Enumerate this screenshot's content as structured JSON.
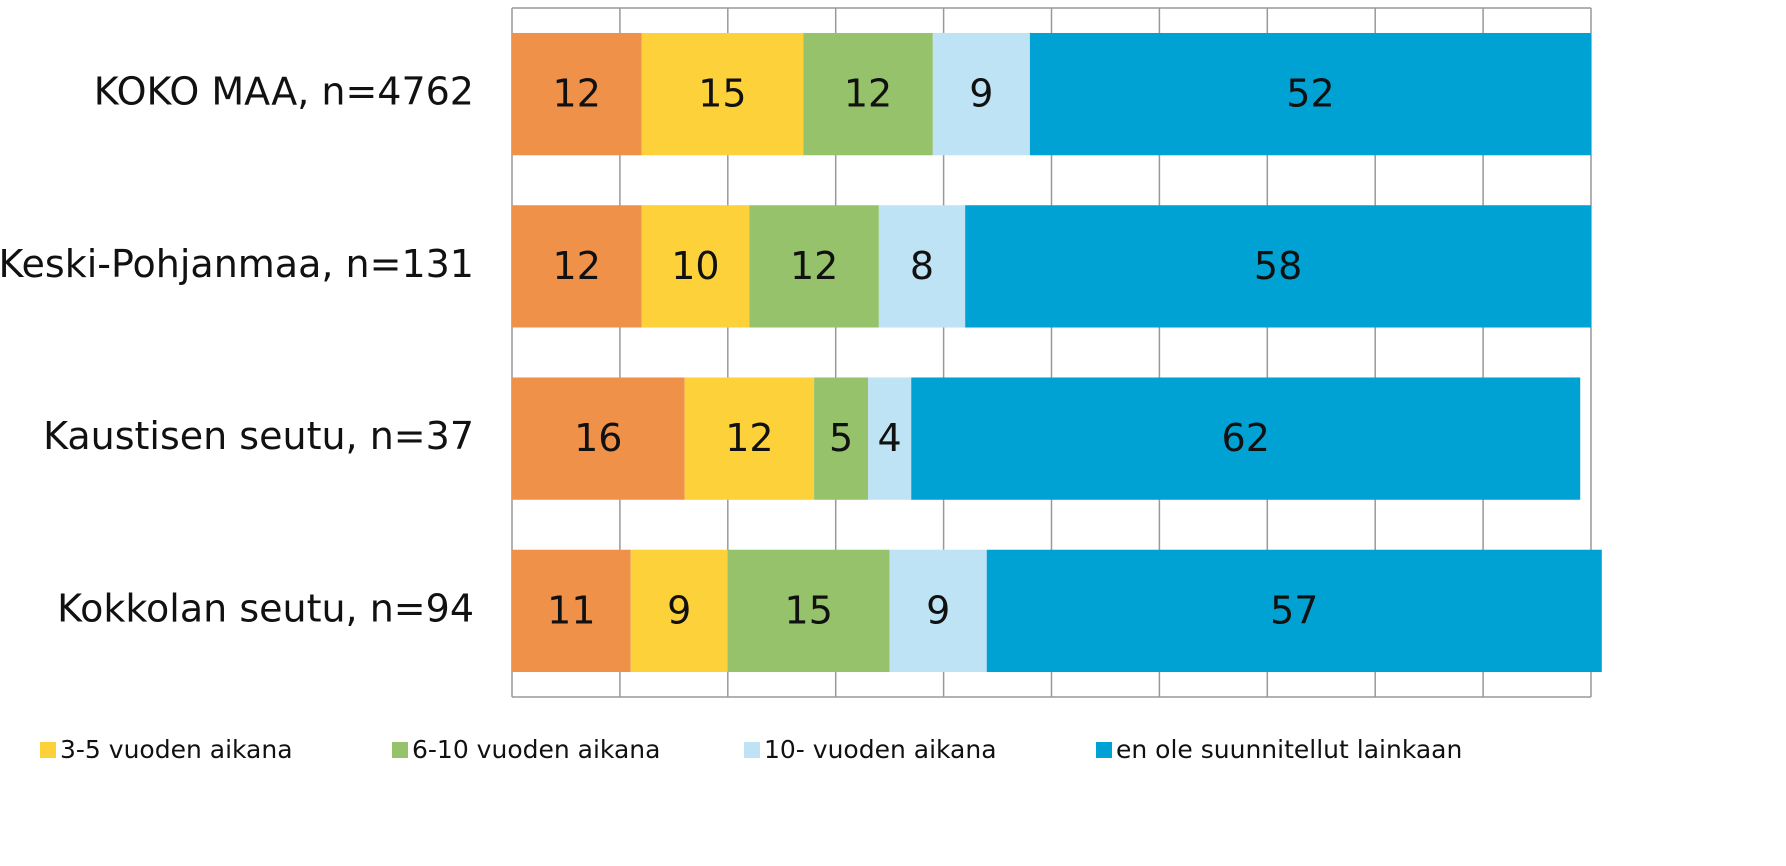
{
  "chart_data": {
    "type": "bar",
    "orientation": "horizontal",
    "stacked": true,
    "categories": [
      "KOKO MAA, n=4762",
      "Keski-Pohjanmaa, n=131",
      "Kaustisen seutu, n=37",
      "Kokkolan seutu, n=94"
    ],
    "series": [
      {
        "color": "#f0914a",
        "values": [
          12,
          12,
          16,
          11
        ]
      },
      {
        "name": "3-5 vuoden aikana",
        "color": "#fcd13a",
        "values": [
          15,
          10,
          12,
          9
        ]
      },
      {
        "name": "6-10 vuoden aikana",
        "color": "#95c26a",
        "values": [
          12,
          12,
          5,
          15
        ]
      },
      {
        "name": "10- vuoden aikana",
        "color": "#bde3f5",
        "values": [
          9,
          8,
          4,
          9
        ]
      },
      {
        "name": "en ole suunnitellut  lainkaan",
        "color": "#00a2d3",
        "values": [
          52,
          58,
          62,
          57
        ]
      }
    ],
    "xlim": [
      0,
      100
    ],
    "xticks": [
      0,
      10,
      20,
      30,
      40,
      50,
      60,
      70,
      80,
      90,
      100
    ],
    "grid": true,
    "legend": "bottom"
  }
}
